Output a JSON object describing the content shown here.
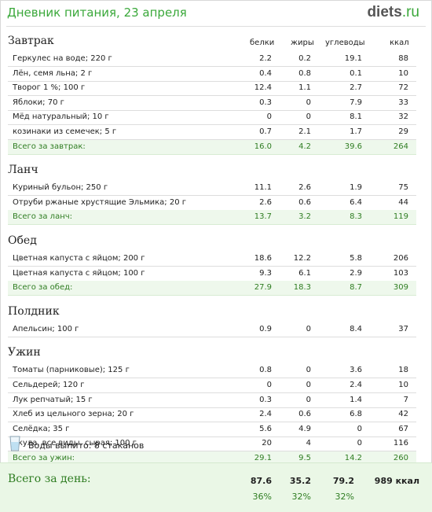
{
  "header": {
    "title": "Дневник питания, 23 апреля",
    "logo_main": "diets",
    "logo_suffix": ".ru"
  },
  "columns": {
    "protein": "белки",
    "fat": "жиры",
    "carbs": "углеводы",
    "kcal": "ккал"
  },
  "meals": [
    {
      "name": "Завтрак",
      "items": [
        {
          "name": "Геркулес на воде; 220 г",
          "p": "2.2",
          "f": "0.2",
          "c": "19.1",
          "k": "88"
        },
        {
          "name": "Лён, семя льна; 2 г",
          "p": "0.4",
          "f": "0.8",
          "c": "0.1",
          "k": "10"
        },
        {
          "name": "Творог 1 %; 100 г",
          "p": "12.4",
          "f": "1.1",
          "c": "2.7",
          "k": "72"
        },
        {
          "name": "Яблоки; 70 г",
          "p": "0.3",
          "f": "0",
          "c": "7.9",
          "k": "33"
        },
        {
          "name": "Мёд натуральный; 10 г",
          "p": "0",
          "f": "0",
          "c": "8.1",
          "k": "32"
        },
        {
          "name": "козинаки из семечек; 5 г",
          "p": "0.7",
          "f": "2.1",
          "c": "1.7",
          "k": "29"
        }
      ],
      "total": {
        "name": "Всего за завтрак:",
        "p": "16.0",
        "f": "4.2",
        "c": "39.6",
        "k": "264"
      }
    },
    {
      "name": "Ланч",
      "items": [
        {
          "name": "Куриный бульон; 250 г",
          "p": "11.1",
          "f": "2.6",
          "c": "1.9",
          "k": "75"
        },
        {
          "name": "Отруби ржаные хрустящие Эльмика; 20 г",
          "p": "2.6",
          "f": "0.6",
          "c": "6.4",
          "k": "44"
        }
      ],
      "total": {
        "name": "Всего за ланч:",
        "p": "13.7",
        "f": "3.2",
        "c": "8.3",
        "k": "119"
      }
    },
    {
      "name": "Обед",
      "items": [
        {
          "name": "Цветная капуста с яйцом; 200 г",
          "p": "18.6",
          "f": "12.2",
          "c": "5.8",
          "k": "206"
        },
        {
          "name": "Цветная капуста с яйцом; 100 г",
          "p": "9.3",
          "f": "6.1",
          "c": "2.9",
          "k": "103"
        }
      ],
      "total": {
        "name": "Всего за обед:",
        "p": "27.9",
        "f": "18.3",
        "c": "8.7",
        "k": "309"
      }
    },
    {
      "name": "Полдник",
      "items": [
        {
          "name": "Апельсин; 100 г",
          "p": "0.9",
          "f": "0",
          "c": "8.4",
          "k": "37"
        }
      ],
      "total": null
    },
    {
      "name": "Ужин",
      "items": [
        {
          "name": "Томаты (парниковые); 125 г",
          "p": "0.8",
          "f": "0",
          "c": "3.6",
          "k": "18"
        },
        {
          "name": "Сельдерей; 120 г",
          "p": "0",
          "f": "0",
          "c": "2.4",
          "k": "10"
        },
        {
          "name": "Лук репчатый; 15 г",
          "p": "0.3",
          "f": "0",
          "c": "1.4",
          "k": "7"
        },
        {
          "name": "Хлеб из цельного зерна; 20 г",
          "p": "2.4",
          "f": "0.6",
          "c": "6.8",
          "k": "42"
        },
        {
          "name": "Селёдка; 35 г",
          "p": "5.6",
          "f": "4.9",
          "c": "0",
          "k": "67"
        },
        {
          "name": "Акула, все виды, сырая; 100 г",
          "p": "20",
          "f": "4",
          "c": "0",
          "k": "116"
        }
      ],
      "total": {
        "name": "Всего за ужин:",
        "p": "29.1",
        "f": "9.5",
        "c": "14.2",
        "k": "260"
      }
    }
  ],
  "water": {
    "text": "Воды выпито: 8 стаканов",
    "icon": "water-glass-icon"
  },
  "day_total": {
    "label": "Всего за день:",
    "protein": "87.6",
    "fat": "35.2",
    "carbs": "79.2",
    "kcal": "989 ккал",
    "protein_pct": "36%",
    "fat_pct": "32%",
    "carbs_pct": "32%"
  },
  "colors": {
    "accent": "#3aa83a",
    "total_text": "#2f7d22",
    "total_bg": "#eef8ec",
    "day_bg": "#eaf7e6"
  }
}
